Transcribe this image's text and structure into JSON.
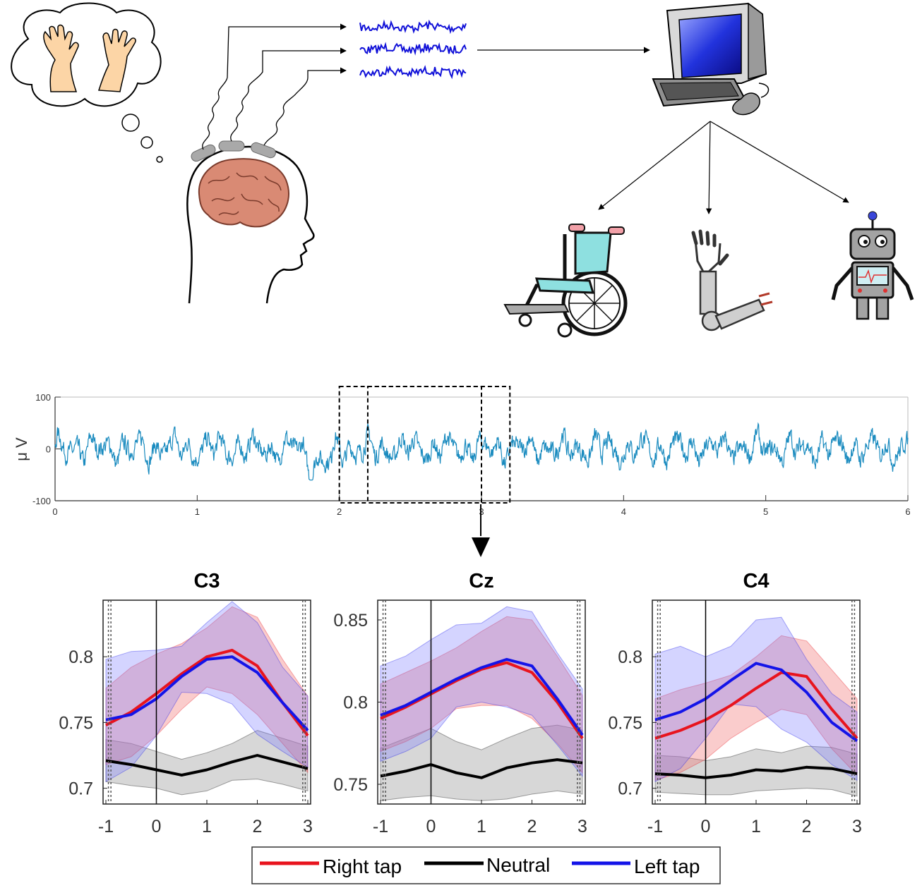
{
  "flow": {
    "targets": [
      "wheelchair-icon",
      "prosthetic-arm-icon",
      "robot-icon"
    ],
    "source": "brain-icon",
    "processor": "computer-icon",
    "thought": "imagined-hand-movement-icon"
  },
  "chart_data": [
    {
      "type": "line",
      "ylabel": "μ V",
      "xlim": [
        0,
        6
      ],
      "ylim": [
        -100,
        100
      ],
      "xticks": [
        "0",
        "1",
        "2",
        "3",
        "4",
        "5",
        "6"
      ],
      "yticks": [
        "100",
        "0",
        "-100"
      ],
      "series": [
        {
          "color": "#1a8bbf"
        }
      ],
      "windows": [
        [
          2.0,
          3.0
        ],
        [
          2.2,
          3.2
        ]
      ]
    },
    {
      "type": "line",
      "title": "C3",
      "xlim": [
        -1,
        3
      ],
      "ylim": [
        0.688,
        0.843
      ],
      "xticks": [
        "-1",
        "0",
        "1",
        "2",
        "3"
      ],
      "yticks": [
        {
          "v": 0.8,
          "t": "0.8"
        },
        {
          "v": 0.75,
          "t": "0.75"
        },
        {
          "v": 0.7,
          "t": "0.7"
        }
      ],
      "x": [
        -1,
        -0.5,
        0,
        0.5,
        1,
        1.5,
        2,
        2.5,
        3
      ],
      "series": [
        {
          "name": "Right tap",
          "color": "#e8141e",
          "values": [
            0.748,
            0.758,
            0.772,
            0.787,
            0.8,
            0.805,
            0.793,
            0.765,
            0.74
          ],
          "upper": [
            0.776,
            0.792,
            0.802,
            0.81,
            0.822,
            0.838,
            0.83,
            0.798,
            0.77
          ],
          "lower": [
            0.718,
            0.724,
            0.74,
            0.76,
            0.777,
            0.772,
            0.756,
            0.734,
            0.712
          ]
        },
        {
          "name": "Neutral",
          "color": "#000000",
          "values": [
            0.721,
            0.718,
            0.714,
            0.71,
            0.714,
            0.72,
            0.725,
            0.72,
            0.715
          ],
          "upper": [
            0.737,
            0.734,
            0.728,
            0.722,
            0.727,
            0.734,
            0.744,
            0.738,
            0.732
          ],
          "lower": [
            0.705,
            0.702,
            0.7,
            0.695,
            0.698,
            0.706,
            0.707,
            0.703,
            0.698
          ]
        },
        {
          "name": "Left tap",
          "color": "#1414e8",
          "values": [
            0.752,
            0.756,
            0.768,
            0.785,
            0.798,
            0.8,
            0.788,
            0.765,
            0.744
          ],
          "upper": [
            0.798,
            0.804,
            0.805,
            0.808,
            0.826,
            0.842,
            0.826,
            0.792,
            0.77
          ],
          "lower": [
            0.705,
            0.716,
            0.74,
            0.773,
            0.772,
            0.764,
            0.741,
            0.728,
            0.716
          ]
        }
      ]
    },
    {
      "type": "line",
      "title": "Cz",
      "xlim": [
        -1,
        3
      ],
      "ylim": [
        0.738,
        0.862
      ],
      "xticks": [
        "-1",
        "0",
        "1",
        "2",
        "3"
      ],
      "yticks": [
        {
          "v": 0.85,
          "t": "0.85"
        },
        {
          "v": 0.8,
          "t": "0.8"
        },
        {
          "v": 0.75,
          "t": "0.75"
        }
      ],
      "x": [
        -1,
        -0.5,
        0,
        0.5,
        1,
        1.5,
        2,
        2.5,
        3
      ],
      "series": [
        {
          "name": "Right tap",
          "color": "#e8141e",
          "values": [
            0.79,
            0.797,
            0.805,
            0.813,
            0.82,
            0.824,
            0.818,
            0.8,
            0.778
          ],
          "upper": [
            0.811,
            0.818,
            0.825,
            0.833,
            0.843,
            0.852,
            0.85,
            0.828,
            0.804
          ],
          "lower": [
            0.77,
            0.776,
            0.784,
            0.796,
            0.798,
            0.798,
            0.79,
            0.775,
            0.757
          ]
        },
        {
          "name": "Neutral",
          "color": "#000000",
          "values": [
            0.755,
            0.758,
            0.762,
            0.757,
            0.754,
            0.76,
            0.763,
            0.765,
            0.763
          ],
          "upper": [
            0.772,
            0.778,
            0.784,
            0.776,
            0.771,
            0.778,
            0.784,
            0.786,
            0.783
          ],
          "lower": [
            0.74,
            0.742,
            0.743,
            0.741,
            0.74,
            0.741,
            0.744,
            0.746,
            0.744
          ]
        },
        {
          "name": "Left tap",
          "color": "#1414e8",
          "values": [
            0.792,
            0.798,
            0.806,
            0.814,
            0.821,
            0.826,
            0.822,
            0.802,
            0.78
          ],
          "upper": [
            0.822,
            0.828,
            0.838,
            0.847,
            0.848,
            0.858,
            0.855,
            0.83,
            0.808
          ],
          "lower": [
            0.764,
            0.77,
            0.778,
            0.797,
            0.8,
            0.797,
            0.792,
            0.774,
            0.755
          ]
        }
      ]
    },
    {
      "type": "line",
      "title": "C4",
      "xlim": [
        -1,
        3
      ],
      "ylim": [
        0.688,
        0.843
      ],
      "xticks": [
        "-1",
        "0",
        "1",
        "2",
        "3"
      ],
      "yticks": [
        {
          "v": 0.8,
          "t": "0.8"
        },
        {
          "v": 0.75,
          "t": "0.75"
        },
        {
          "v": 0.7,
          "t": "0.7"
        }
      ],
      "x": [
        -1,
        -0.5,
        0,
        0.5,
        1,
        1.5,
        2,
        2.5,
        3
      ],
      "series": [
        {
          "name": "Right tap",
          "color": "#e8141e",
          "values": [
            0.738,
            0.744,
            0.752,
            0.763,
            0.776,
            0.788,
            0.785,
            0.76,
            0.738
          ],
          "upper": [
            0.768,
            0.775,
            0.78,
            0.786,
            0.8,
            0.816,
            0.812,
            0.79,
            0.768
          ],
          "lower": [
            0.706,
            0.712,
            0.722,
            0.738,
            0.75,
            0.76,
            0.756,
            0.73,
            0.71
          ]
        },
        {
          "name": "Neutral",
          "color": "#000000",
          "values": [
            0.711,
            0.71,
            0.708,
            0.71,
            0.714,
            0.713,
            0.716,
            0.715,
            0.711
          ],
          "upper": [
            0.725,
            0.724,
            0.721,
            0.724,
            0.73,
            0.727,
            0.732,
            0.731,
            0.726
          ],
          "lower": [
            0.697,
            0.696,
            0.695,
            0.695,
            0.698,
            0.699,
            0.7,
            0.699,
            0.694
          ]
        },
        {
          "name": "Left tap",
          "color": "#1414e8",
          "values": [
            0.752,
            0.758,
            0.768,
            0.782,
            0.795,
            0.79,
            0.773,
            0.75,
            0.736
          ],
          "upper": [
            0.802,
            0.808,
            0.8,
            0.808,
            0.828,
            0.83,
            0.798,
            0.772,
            0.758
          ],
          "lower": [
            0.705,
            0.715,
            0.738,
            0.764,
            0.762,
            0.745,
            0.735,
            0.718,
            0.706
          ]
        }
      ]
    }
  ],
  "legend": [
    {
      "label": "Right tap",
      "color": "#e8141e"
    },
    {
      "label": "Neutral",
      "color": "#000000"
    },
    {
      "label": "Left tap",
      "color": "#1414e8"
    }
  ]
}
